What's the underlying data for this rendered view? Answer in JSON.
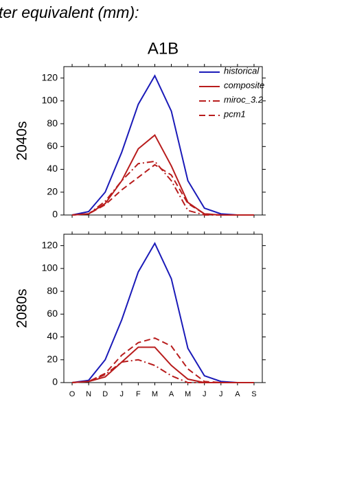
{
  "header": "ter equivalent (mm):",
  "chart_data": [
    {
      "type": "line",
      "title": "A1B",
      "ylabel": "2040s",
      "categories": [
        null,
        null,
        null,
        null,
        null,
        null,
        null,
        null,
        null,
        null,
        null,
        null
      ],
      "ylim": [
        0,
        130
      ],
      "yticks": [
        0,
        20,
        40,
        60,
        80,
        100,
        120
      ],
      "legend": "top-right",
      "series": [
        {
          "name": "historical",
          "color": "#1a1ab8",
          "dash": "solid",
          "values": [
            0,
            3,
            20,
            55,
            97,
            122,
            91,
            30,
            6,
            1,
            0,
            0
          ]
        },
        {
          "name": "composite",
          "color": "#b81c1c",
          "dash": "solid",
          "values": [
            0,
            1,
            10,
            30,
            58,
            70,
            43,
            11,
            1,
            0,
            0,
            0
          ]
        },
        {
          "name": "miroc_3.2",
          "color": "#b81c1c",
          "dash": "dashdot",
          "values": [
            0,
            1,
            12,
            30,
            45,
            47,
            30,
            4,
            0,
            0,
            0,
            0
          ]
        },
        {
          "name": "pcm1",
          "color": "#b81c1c",
          "dash": "dash",
          "values": [
            0,
            1,
            9,
            22,
            33,
            44,
            35,
            10,
            1,
            0,
            0,
            0
          ]
        }
      ]
    },
    {
      "type": "line",
      "ylabel": "2080s",
      "categories": [
        "O",
        "N",
        "D",
        "J",
        "F",
        "M",
        "A",
        "M",
        "J",
        "J",
        "A",
        "S"
      ],
      "ylim": [
        0,
        130
      ],
      "yticks": [
        0,
        20,
        40,
        60,
        80,
        100,
        120
      ],
      "series": [
        {
          "color": "#1a1ab8",
          "dash": "solid",
          "values": [
            0,
            2,
            20,
            55,
            97,
            122,
            91,
            30,
            6,
            1,
            0,
            0
          ]
        },
        {
          "color": "#b81c1c",
          "dash": "solid",
          "values": [
            0,
            1,
            5,
            18,
            31,
            31,
            15,
            3,
            0,
            0,
            0,
            0
          ]
        },
        {
          "color": "#b81c1c",
          "dash": "dashdot",
          "values": [
            0,
            1,
            7,
            18,
            20,
            15,
            6,
            0,
            0,
            0,
            0,
            0
          ]
        },
        {
          "color": "#b81c1c",
          "dash": "dash",
          "values": [
            0,
            1,
            8,
            24,
            35,
            39,
            32,
            12,
            1,
            0,
            0,
            0
          ]
        }
      ]
    }
  ]
}
